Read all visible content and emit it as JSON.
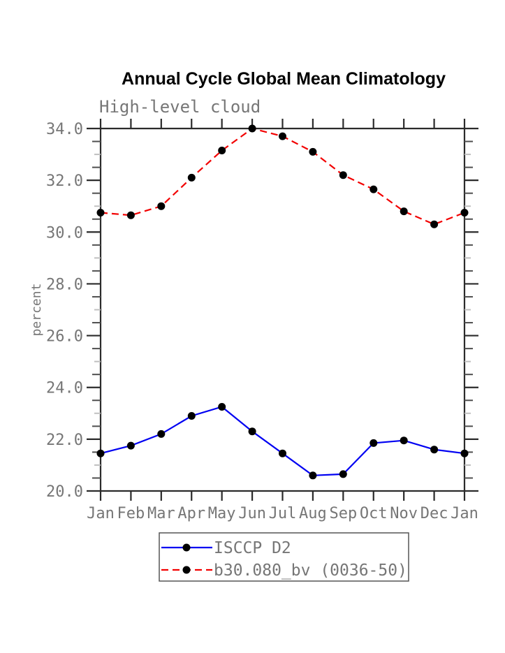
{
  "chart_data": {
    "type": "line",
    "title": "Annual Cycle Global Mean Climatology",
    "subtitle": "High-level cloud",
    "ylabel": "percent",
    "ylim": [
      20.0,
      34.0
    ],
    "ytick_step": 2.0,
    "ytick_values": [
      34.0,
      32.0,
      30.0,
      28.0,
      26.0,
      24.0,
      22.0,
      20.0
    ],
    "ytick_labels": [
      "34.0",
      "32.0",
      "30.0",
      "28.0",
      "26.0",
      "24.0",
      "22.0",
      "20.0"
    ],
    "minor_tick_interval": 0.5,
    "grid": false,
    "legend_position": "bottom",
    "x_categories": [
      "Jan",
      "Feb",
      "Mar",
      "Apr",
      "May",
      "Jun",
      "Jul",
      "Aug",
      "Sep",
      "Oct",
      "Nov",
      "Dec",
      "Jan"
    ],
    "series": [
      {
        "name": "ISCCP D2",
        "line_style": "solid",
        "color": "#0000f2",
        "marker": "filled-circle",
        "marker_color": "#000000",
        "values": [
          21.45,
          21.75,
          22.2,
          22.9,
          23.25,
          22.3,
          21.45,
          20.6,
          20.65,
          21.85,
          21.95,
          21.6,
          21.45
        ]
      },
      {
        "name": "b30.080_bv (0036-50)",
        "line_style": "dashed",
        "color": "#f20000",
        "marker": "filled-circle",
        "marker_color": "#000000",
        "values": [
          30.75,
          30.65,
          31.0,
          32.1,
          33.15,
          34.0,
          33.7,
          33.1,
          32.2,
          31.65,
          30.8,
          30.3,
          30.75
        ]
      }
    ]
  },
  "colors": {
    "background": "#ffffff",
    "axis": "#2b2b2b",
    "minor_tick_dark": "#4f4f4f",
    "minor_tick_light": "#c0c0c0",
    "gray_text": "#767676",
    "legend_border": "#555555",
    "series_blue": "#0000f2",
    "series_red": "#f20000",
    "marker": "#000000"
  }
}
